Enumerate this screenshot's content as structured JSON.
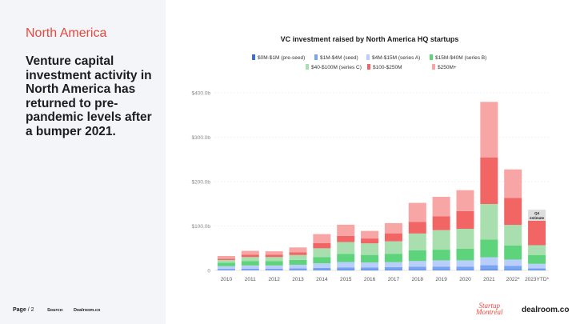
{
  "page": {
    "region": "North America",
    "headline": "Venture capital investment activity in North America has returned to pre-pandemic levels after a bumper 2021.",
    "page_label": "Page",
    "page_number": "/ 2",
    "source_label": "Source:",
    "source_value": "Dealroom.co",
    "logo_startup_line1": "Startup",
    "logo_startup_line2": "Montréal",
    "logo_dealroom": "dealroom.co"
  },
  "colors": {
    "accent": "#e8483d",
    "panel": "#f4f5f8",
    "series": [
      "#3b6fd8",
      "#79a4f2",
      "#b9cefa",
      "#5dd47c",
      "#a9dfae",
      "#f26565",
      "#f7a5a5"
    ]
  },
  "chart_data": {
    "type": "bar",
    "stacked": true,
    "title": "VC investment raised by North America HQ startups",
    "xlabel": "",
    "ylabel": "",
    "ylim": [
      0,
      400
    ],
    "yticks": [
      0,
      100,
      200,
      300,
      400
    ],
    "ytick_labels": [
      "0",
      "$100.0b",
      "$200.0b",
      "$300.0b",
      "$400.0b"
    ],
    "categories": [
      "2010",
      "2011",
      "2012",
      "2013",
      "2014",
      "2015",
      "2016",
      "2017",
      "2018",
      "2019",
      "2020",
      "2021",
      "2022*",
      "2023YTD*"
    ],
    "series": [
      {
        "name": "$0M-$1M  (pre-seed)",
        "values": [
          0.5,
          0.6,
          0.6,
          0.7,
          0.8,
          0.9,
          0.9,
          1.0,
          1.1,
          1.2,
          1.2,
          1.6,
          1.4,
          0.8
        ]
      },
      {
        "name": "$1M-$4M (seed)",
        "values": [
          3,
          3.5,
          3.5,
          4,
          5,
          6,
          6,
          6.5,
          7,
          7.5,
          7.5,
          10,
          9,
          4
        ]
      },
      {
        "name": "$4M-$15M (series A)",
        "values": [
          6,
          7,
          7,
          8,
          10,
          12,
          11,
          11,
          13,
          14,
          14,
          18,
          14,
          10
        ]
      },
      {
        "name": "$15M-$40M (series B)",
        "values": [
          8,
          10,
          10,
          11,
          14,
          18,
          17,
          19,
          24,
          24,
          26,
          40,
          32,
          20
        ]
      },
      {
        "name": "$40-$100M (series C)",
        "values": [
          6,
          9,
          9,
          11,
          20,
          27,
          26,
          28,
          38,
          44,
          45,
          80,
          46,
          22
        ]
      },
      {
        "name": "$100-$250M",
        "values": [
          3,
          5,
          5,
          6,
          12,
          14,
          11,
          18,
          26,
          31,
          40,
          105,
          61,
          55
        ]
      },
      {
        "name": "$250M+",
        "values": [
          6,
          9,
          8,
          11,
          20,
          25,
          17,
          23,
          43,
          44,
          47,
          125,
          64,
          0
        ]
      }
    ],
    "annotation": {
      "category": "2023YTD*",
      "line1": "Q4",
      "line2": "estimate",
      "value": 25
    }
  }
}
